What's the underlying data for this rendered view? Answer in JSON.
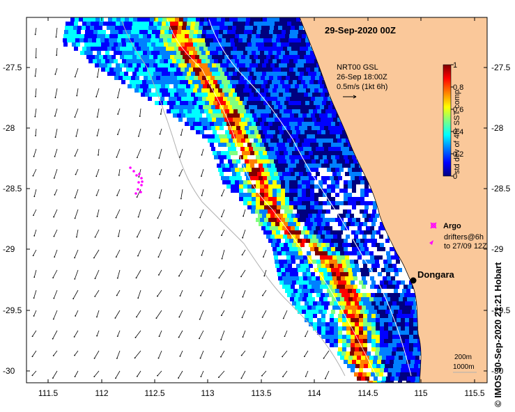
{
  "title": "29-Sep-2020 00Z",
  "product_note": [
    "NRT00 GSL",
    "26-Sep 18:00Z",
    "0.5m/s (1kt 6h)"
  ],
  "colorbar": {
    "label": "std dev of 4hr SST comp",
    "ticks": [
      "0",
      "0.2",
      "0.4",
      "0.6",
      "0.8",
      "1"
    ],
    "colors": [
      "#00007f",
      "#0000ff",
      "#0080ff",
      "#00ffff",
      "#80ff80",
      "#ffff00",
      "#ff8000",
      "#ff0000",
      "#7f0000"
    ]
  },
  "x_ticks": [
    "111.5",
    "112",
    "112.5",
    "113",
    "113.5",
    "114",
    "114.5",
    "115",
    "115.5"
  ],
  "y_ticks": [
    "-27.5",
    "-28",
    "-28.5",
    "-29",
    "-29.5",
    "-30"
  ],
  "legend": {
    "argo": "Argo",
    "drifters": [
      "drifters@6h",
      "to 27/09 12Z"
    ]
  },
  "place": "Dongara",
  "scale": [
    "200m",
    "1000m"
  ],
  "credit": "© IMOS 30-Sep-2020 21:21 Hobart",
  "colors": {
    "land": "#fac89a",
    "argo": "#ff00ff",
    "contour": "#b0b0b0",
    "isobath": "#ffffff"
  }
}
